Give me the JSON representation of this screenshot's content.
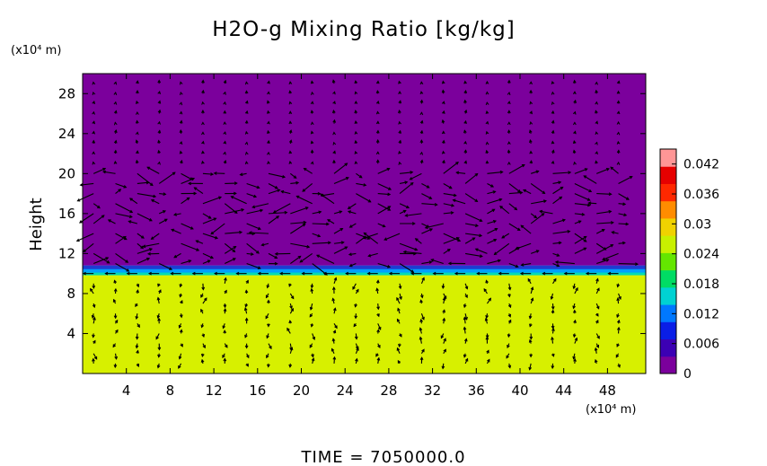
{
  "chart_data": {
    "type": "heatmap",
    "title": "H2O-g Mixing Ratio [kg/kg]",
    "x_unit": "(x10⁴ m)",
    "y_unit": "(x10⁴ m)",
    "ylabel": "Height",
    "xlim": [
      0,
      51.5
    ],
    "ylim": [
      0,
      30
    ],
    "x_ticks": [
      4,
      8,
      12,
      16,
      20,
      24,
      28,
      32,
      36,
      40,
      44,
      48
    ],
    "x_tick_labels": [
      "4",
      "8",
      "12",
      "16",
      "20",
      "24",
      "28",
      "32",
      "36",
      "40",
      "44",
      "48"
    ],
    "y_ticks": [
      4,
      8,
      12,
      16,
      20,
      24,
      28
    ],
    "y_tick_labels": [
      "4",
      "8",
      "12",
      "16",
      "20",
      "24",
      "28"
    ],
    "colorbar": {
      "range": [
        0,
        0.045
      ],
      "ticks": [
        0,
        0.006,
        0.012,
        0.018,
        0.024,
        0.03,
        0.036,
        0.042
      ],
      "tick_labels": [
        "0",
        "0.006",
        "0.012",
        "0.018",
        "0.024",
        "0.03",
        "0.036",
        "0.042"
      ],
      "colors": [
        "#7b009c",
        "#3c00b4",
        "#0a1ee6",
        "#0078ff",
        "#00d2d2",
        "#00dc64",
        "#64e600",
        "#c8f000",
        "#f0d200",
        "#ff8c00",
        "#ff2800",
        "#e60000",
        "#ff9696"
      ]
    },
    "field_regions": [
      {
        "name": "lower moist layer",
        "y_range": [
          0,
          9.9
        ],
        "value": 0.0285,
        "color": "#d7f000"
      },
      {
        "name": "transition band",
        "y_range": [
          9.9,
          10.8
        ],
        "value": 0.012,
        "color": "#00a0ff"
      },
      {
        "name": "upper dry layer",
        "y_range": [
          10.8,
          30
        ],
        "value": 0.0,
        "color": "#7b009c"
      }
    ],
    "vector_field": {
      "description": "wind vectors overlaid",
      "x_spacing": 2,
      "y_spacing": 1
    },
    "time_label": "TIME  =  7050000.0"
  }
}
